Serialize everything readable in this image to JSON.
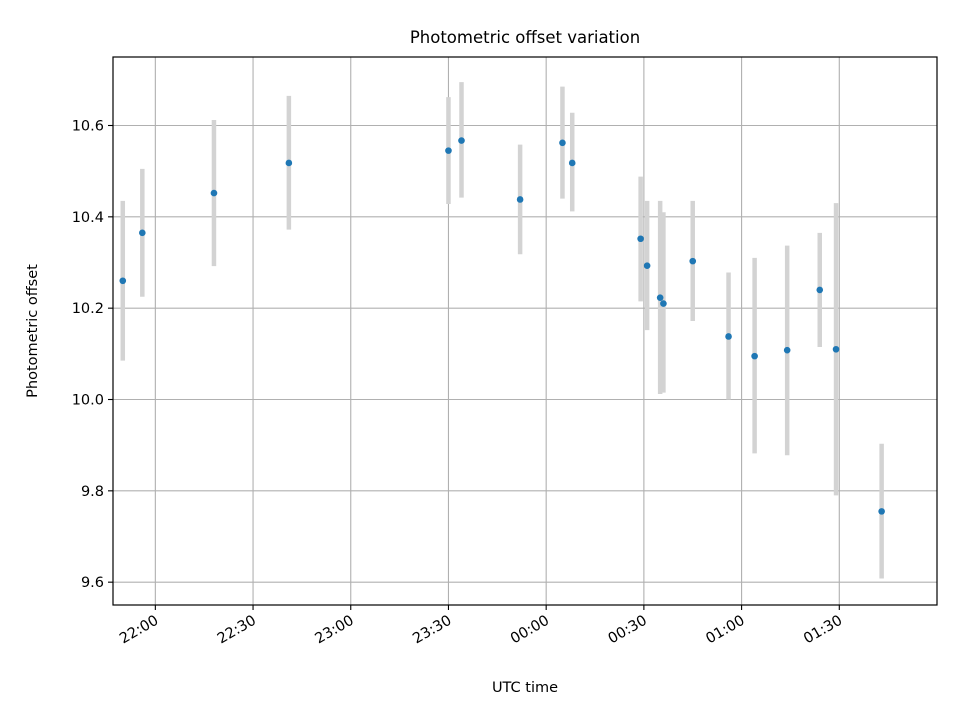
{
  "chart_data": {
    "type": "scatter",
    "title": "Photometric offset variation",
    "xlabel": "UTC time",
    "ylabel": "Photometric offset",
    "x_ticks": [
      "22:00",
      "22:30",
      "23:00",
      "23:30",
      "00:00",
      "00:30",
      "01:00",
      "01:30"
    ],
    "y_ticks": [
      "9.6",
      "9.8",
      "10.0",
      "10.2",
      "10.4",
      "10.6"
    ],
    "xlim": [
      "21:47",
      "02:00"
    ],
    "ylim": [
      9.55,
      10.75
    ],
    "grid": true,
    "colors": {
      "marker": "#1f77b4",
      "errorbar": "#d3d3d3",
      "grid": "#b0b0b0"
    },
    "points": [
      {
        "time": "21:50",
        "y": 10.26,
        "err_low": 10.085,
        "err_high": 10.435
      },
      {
        "time": "21:56",
        "y": 10.365,
        "err_low": 10.225,
        "err_high": 10.505
      },
      {
        "time": "22:18",
        "y": 10.452,
        "err_low": 10.292,
        "err_high": 10.612
      },
      {
        "time": "22:41",
        "y": 10.518,
        "err_low": 10.372,
        "err_high": 10.665
      },
      {
        "time": "23:30",
        "y": 10.545,
        "err_low": 10.428,
        "err_high": 10.662
      },
      {
        "time": "23:34",
        "y": 10.567,
        "err_low": 10.442,
        "err_high": 10.695
      },
      {
        "time": "23:52",
        "y": 10.438,
        "err_low": 10.318,
        "err_high": 10.558
      },
      {
        "time": "00:05",
        "y": 10.562,
        "err_low": 10.44,
        "err_high": 10.685
      },
      {
        "time": "00:08",
        "y": 10.518,
        "err_low": 10.412,
        "err_high": 10.628
      },
      {
        "time": "00:29",
        "y": 10.352,
        "err_low": 10.215,
        "err_high": 10.488
      },
      {
        "time": "00:31",
        "y": 10.293,
        "err_low": 10.152,
        "err_high": 10.435
      },
      {
        "time": "00:35",
        "y": 10.223,
        "err_low": 10.012,
        "err_high": 10.435
      },
      {
        "time": "00:36",
        "y": 10.21,
        "err_low": 10.015,
        "err_high": 10.41
      },
      {
        "time": "00:45",
        "y": 10.303,
        "err_low": 10.172,
        "err_high": 10.435
      },
      {
        "time": "00:56",
        "y": 10.138,
        "err_low": 10.0,
        "err_high": 10.278
      },
      {
        "time": "01:04",
        "y": 10.095,
        "err_low": 9.882,
        "err_high": 10.31
      },
      {
        "time": "01:14",
        "y": 10.108,
        "err_low": 9.878,
        "err_high": 10.337
      },
      {
        "time": "01:24",
        "y": 10.24,
        "err_low": 10.115,
        "err_high": 10.365
      },
      {
        "time": "01:29",
        "y": 10.11,
        "err_low": 9.79,
        "err_high": 10.43
      },
      {
        "time": "01:43",
        "y": 9.755,
        "err_low": 9.608,
        "err_high": 9.903
      }
    ]
  }
}
